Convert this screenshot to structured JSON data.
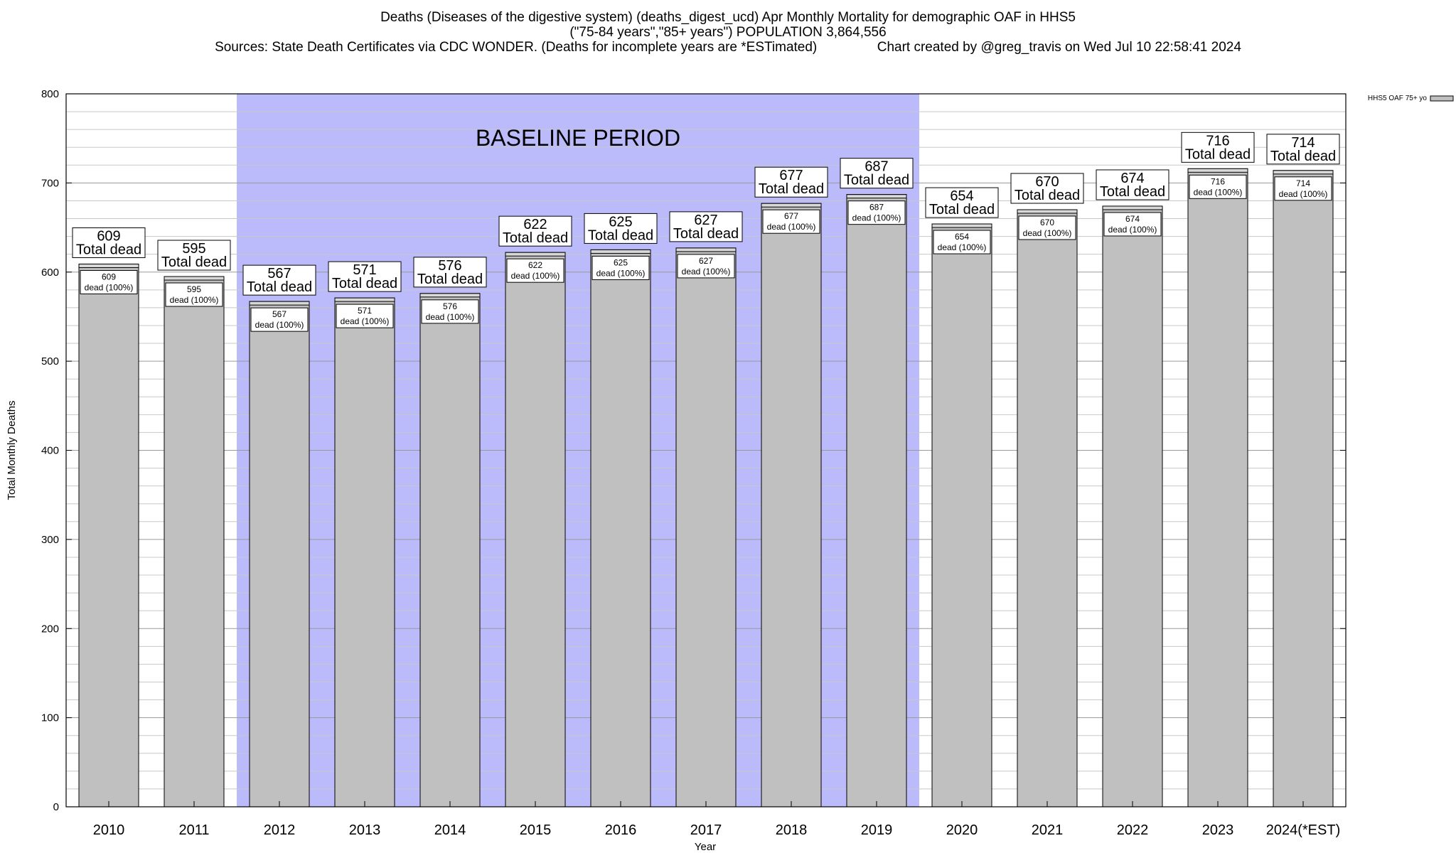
{
  "header": {
    "title_line1": "Deaths (Diseases of the digestive system) (deaths_digest_ucd) Apr Monthly Mortality for demographic OAF in HHS5",
    "title_line2": "(\"75-84 years\",\"85+ years\") POPULATION 3,864,556",
    "title_line3": "Sources: State Death Certificates via CDC WONDER. (Deaths for incomplete years are *ESTimated)                Chart created by @greg_travis on Wed Jul 10 22:58:41 2024"
  },
  "chart_data": {
    "type": "bar",
    "categories": [
      "2010",
      "2011",
      "2012",
      "2013",
      "2014",
      "2015",
      "2016",
      "2017",
      "2018",
      "2019",
      "2020",
      "2021",
      "2022",
      "2023",
      "2024(*EST)"
    ],
    "series": [
      {
        "name": "HHS5 OAF 75+ yo",
        "values": [
          609,
          595,
          567,
          571,
          576,
          622,
          625,
          627,
          677,
          687,
          654,
          670,
          674,
          716,
          714
        ]
      }
    ],
    "top_label_suffix": "Total dead",
    "inner_label_suffix": "dead (100%)",
    "xlabel": "Year",
    "ylabel": "Total Monthly Deaths",
    "ylim": [
      0,
      800
    ],
    "yticks": [
      0,
      100,
      200,
      300,
      400,
      500,
      600,
      700,
      800
    ],
    "minor_gridline_step": 20,
    "grid": true,
    "legend_position": "top-right",
    "baseline_period": {
      "label": "BASELINE PERIOD",
      "start": "2012",
      "end": "2019"
    },
    "colors": {
      "bar": "#c0c0c0",
      "baseline": "#bbbbfb",
      "grid": "#c8c8c8"
    }
  }
}
